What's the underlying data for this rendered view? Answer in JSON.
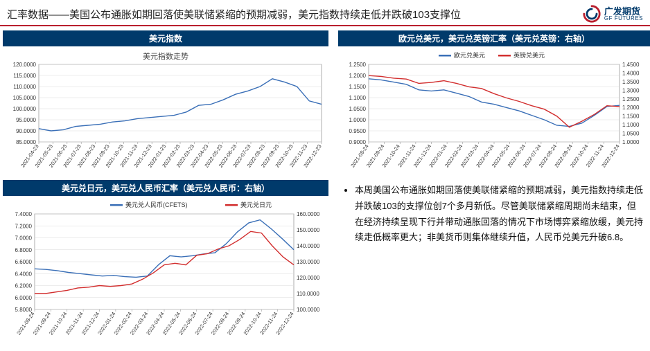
{
  "header": {
    "title": "汇率数据——美国公布通胀如期回落使美联储紧缩的预期减弱，美元指数持续走低并跌破103支撑位",
    "logo_cn": "广发期货",
    "logo_en": "GF FUTURES"
  },
  "colors": {
    "brand_red": "#b91f2e",
    "brand_navy": "#003a6b",
    "series_blue": "#3a6fb7",
    "series_red": "#d22e2e",
    "grid": "#d9d9d9",
    "axis": "#999999",
    "text": "#333333"
  },
  "chart1": {
    "title": "美元指数",
    "subtitle": "美元指数走势",
    "ylim": [
      85,
      120
    ],
    "ytick_step": 5,
    "x_labels": [
      "2021-04-23",
      "2021-05-23",
      "2021-06-23",
      "2021-07-23",
      "2021-08-23",
      "2021-09-23",
      "2021-10-23",
      "2021-11-23",
      "2021-12-23",
      "2022-01-23",
      "2022-02-23",
      "2022-03-23",
      "2022-04-23",
      "2022-05-23",
      "2022-06-23",
      "2022-07-23",
      "2022-08-23",
      "2022-09-23",
      "2022-10-23",
      "2022-11-23",
      "2022-12-23"
    ],
    "series": [
      {
        "name": "美元指数走势",
        "color": "#3a6fb7",
        "values": [
          91,
          90,
          90.5,
          92,
          92.5,
          93,
          94,
          94.5,
          95.5,
          96,
          96.5,
          97,
          98.5,
          101.5,
          102,
          104,
          106.5,
          108,
          110,
          113.5,
          112,
          110,
          103.5,
          102
        ]
      }
    ]
  },
  "chart2": {
    "title": "欧元兑美元，美元兑英镑汇率（美元兑英镑：右轴）",
    "legend": [
      "欧元兑美元",
      "英镑兑美元"
    ],
    "yl": {
      "lim": [
        0.9,
        1.25
      ],
      "step": 0.05
    },
    "yr": {
      "lim": [
        1.0,
        1.45
      ],
      "step": 0.05
    },
    "x_labels": [
      "2021-08-24",
      "2021-09-24",
      "2021-10-24",
      "2021-11-24",
      "2021-12-24",
      "2022-01-24",
      "2022-02-24",
      "2022-03-24",
      "2022-04-24",
      "2022-05-24",
      "2022-06-24",
      "2022-07-24",
      "2022-08-24",
      "2022-09-24",
      "2022-10-24",
      "2022-11-24",
      "2022-12-24"
    ],
    "series_left": {
      "color": "#3a6fb7",
      "values": [
        1.185,
        1.18,
        1.17,
        1.16,
        1.135,
        1.13,
        1.135,
        1.12,
        1.105,
        1.08,
        1.07,
        1.055,
        1.04,
        1.02,
        1.0,
        0.975,
        0.97,
        0.985,
        1.02,
        1.06,
        1.065
      ]
    },
    "series_right": {
      "color": "#d22e2e",
      "values": [
        1.385,
        1.38,
        1.37,
        1.365,
        1.34,
        1.345,
        1.355,
        1.34,
        1.32,
        1.31,
        1.28,
        1.255,
        1.235,
        1.21,
        1.19,
        1.15,
        1.085,
        1.12,
        1.16,
        1.21,
        1.205
      ]
    }
  },
  "chart3": {
    "title": "美元兑日元，美元兑人民币汇率（美元兑人民币：右轴）",
    "legend": [
      "美元兑人民币(CFETS)",
      "美元兑日元"
    ],
    "yl": {
      "lim": [
        5.8,
        7.4
      ],
      "step": 0.2
    },
    "yr": {
      "lim": [
        100,
        160
      ],
      "step": 10
    },
    "x_labels": [
      "2021-08-24",
      "2021-09-24",
      "2021-10-24",
      "2021-11-24",
      "2021-12-24",
      "2022-01-24",
      "2022-02-24",
      "2022-03-24",
      "2022-04-24",
      "2022-05-24",
      "2022-06-24",
      "2022-07-24",
      "2022-08-24",
      "2022-09-24",
      "2022-10-24",
      "2022-11-24",
      "2022-12-24"
    ],
    "series_left": {
      "color": "#3a6fb7",
      "values": [
        6.48,
        6.47,
        6.45,
        6.42,
        6.4,
        6.38,
        6.36,
        6.37,
        6.35,
        6.34,
        6.36,
        6.55,
        6.7,
        6.68,
        6.7,
        6.73,
        6.75,
        6.9,
        7.1,
        7.25,
        7.3,
        7.15,
        6.98,
        6.8
      ]
    },
    "series_right": {
      "color": "#d22e2e",
      "values": [
        110,
        110,
        111,
        112,
        113.5,
        114,
        115,
        114.5,
        115,
        116,
        119,
        123,
        128,
        129,
        128,
        134,
        135,
        138,
        140,
        144,
        149,
        148,
        140,
        133,
        128
      ]
    }
  },
  "commentary": {
    "bullet": "本周美国公布通胀如期回落使美联储紧缩的预期减弱，美元指数持续走低并跌破103的支撑位创7个多月新低。尽管美联储紧缩周期尚未结束，但在经济持续呈现下行并带动通胀回落的情况下市场博弈紧缩放缓，美元持续走低概率更大；非美货币则集体继续升值，人民币兑美元升破6.8。"
  }
}
